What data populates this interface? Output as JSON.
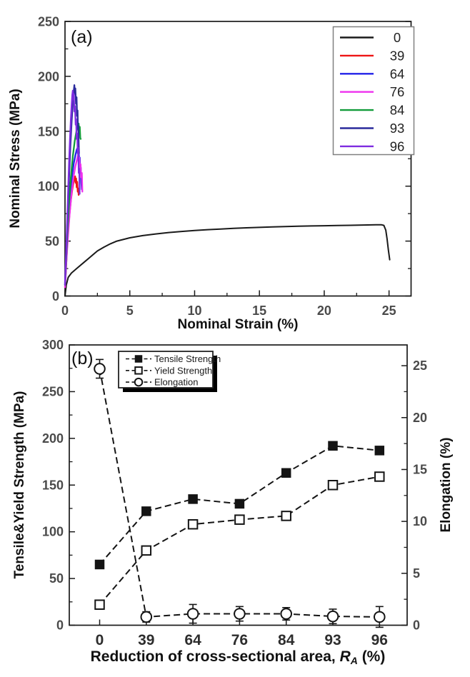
{
  "figure_title": "",
  "panel_a": {
    "label": "(a)",
    "xlabel": "Nominal Strain (%)",
    "ylabel": "Nominal Stress (MPa)"
  },
  "panel_b": {
    "label": "(b)",
    "ylabel_left": "Tensile&Yield Strength (MPa)",
    "ylabel_right": "Elongation (%)",
    "xlabel_prefix": "Reduction of cross-sectional area, ",
    "xlabel_symbol": "R",
    "xlabel_subscript": "A",
    "xlabel_suffix": " (%)"
  },
  "chart_data": [
    {
      "type": "line",
      "panel": "a",
      "title": "",
      "xlabel": "Nominal Strain (%)",
      "ylabel": "Nominal Stress (MPa)",
      "xlim": [
        0,
        26.7
      ],
      "ylim": [
        0,
        250
      ],
      "xticks": [
        0,
        5,
        10,
        15,
        20,
        25
      ],
      "yticks": [
        0,
        50,
        100,
        150,
        200,
        250
      ],
      "x_minor_step": 2.5,
      "y_minor_step": 25,
      "grid": false,
      "legend_position": "top-right",
      "legend_title": "",
      "series": [
        {
          "name": "0",
          "color": "#1a1a1a",
          "width": 2.0,
          "points": [
            [
              0,
              0
            ],
            [
              0.1,
              10
            ],
            [
              0.25,
              17
            ],
            [
              0.5,
              21
            ],
            [
              1,
              26
            ],
            [
              1.5,
              31
            ],
            [
              2,
              36
            ],
            [
              2.5,
              41
            ],
            [
              3,
              44.5
            ],
            [
              3.5,
              47.5
            ],
            [
              4,
              50
            ],
            [
              5,
              53
            ],
            [
              6,
              55
            ],
            [
              7,
              56.5
            ],
            [
              8,
              57.8
            ],
            [
              9,
              58.8
            ],
            [
              10,
              59.6
            ],
            [
              11,
              60.4
            ],
            [
              12,
              61
            ],
            [
              13,
              61.6
            ],
            [
              14,
              62.1
            ],
            [
              15,
              62.5
            ],
            [
              16,
              62.9
            ],
            [
              17,
              63.2
            ],
            [
              18,
              63.5
            ],
            [
              19,
              63.8
            ],
            [
              20,
              64
            ],
            [
              21,
              64.2
            ],
            [
              22,
              64.4
            ],
            [
              23,
              64.6
            ],
            [
              24,
              64.8
            ],
            [
              24.4,
              64.9
            ],
            [
              24.6,
              64.3
            ],
            [
              24.75,
              60
            ],
            [
              24.85,
              52
            ],
            [
              24.95,
              42
            ],
            [
              25.05,
              33
            ]
          ]
        },
        {
          "name": "39",
          "color": "#ee1414",
          "width": 2.3,
          "points": [
            [
              0,
              8
            ],
            [
              0.08,
              26
            ],
            [
              0.16,
              44
            ],
            [
              0.25,
              60
            ],
            [
              0.35,
              75
            ],
            [
              0.45,
              87
            ],
            [
              0.55,
              96
            ],
            [
              0.65,
              103
            ],
            [
              0.73,
              107
            ],
            [
              0.78,
              109
            ],
            [
              0.82,
              103
            ],
            [
              0.86,
              107
            ],
            [
              0.9,
              99
            ],
            [
              0.94,
              104
            ],
            [
              0.98,
              95
            ],
            [
              1.02,
              98
            ],
            [
              1.05,
              92
            ]
          ]
        },
        {
          "name": "64",
          "color": "#2121e8",
          "width": 2.3,
          "points": [
            [
              0,
              10
            ],
            [
              0.1,
              34
            ],
            [
              0.2,
              58
            ],
            [
              0.3,
              78
            ],
            [
              0.42,
              95
            ],
            [
              0.55,
              110
            ],
            [
              0.68,
              121
            ],
            [
              0.8,
              128
            ],
            [
              0.9,
              133
            ],
            [
              0.97,
              135
            ],
            [
              1.02,
              128
            ],
            [
              1.06,
              132
            ],
            [
              1.1,
              121
            ],
            [
              1.14,
              126
            ],
            [
              1.18,
              112
            ],
            [
              1.22,
              117
            ],
            [
              1.26,
              103
            ],
            [
              1.3,
              97
            ]
          ]
        },
        {
          "name": "76",
          "color": "#ee30ee",
          "width": 2.3,
          "points": [
            [
              0,
              8
            ],
            [
              0.1,
              30
            ],
            [
              0.22,
              52
            ],
            [
              0.35,
              74
            ],
            [
              0.5,
              93
            ],
            [
              0.65,
              108
            ],
            [
              0.8,
              118
            ],
            [
              0.92,
              124
            ],
            [
              1.0,
              128
            ],
            [
              1.06,
              122
            ],
            [
              1.1,
              126
            ],
            [
              1.15,
              115
            ],
            [
              1.2,
              120
            ],
            [
              1.25,
              108
            ],
            [
              1.3,
              112
            ],
            [
              1.34,
              95
            ]
          ]
        },
        {
          "name": "84",
          "color": "#129c3a",
          "width": 2.3,
          "points": [
            [
              0,
              10
            ],
            [
              0.1,
              36
            ],
            [
              0.2,
              62
            ],
            [
              0.32,
              86
            ],
            [
              0.45,
              108
            ],
            [
              0.6,
              127
            ],
            [
              0.75,
              141
            ],
            [
              0.88,
              150
            ],
            [
              0.98,
              155
            ],
            [
              1.05,
              157
            ],
            [
              1.1,
              149
            ],
            [
              1.14,
              154
            ],
            [
              1.18,
              144
            ],
            [
              1.21,
              143
            ]
          ]
        },
        {
          "name": "93",
          "color": "#2a2a9c",
          "width": 2.3,
          "points": [
            [
              0,
              12
            ],
            [
              0.08,
              36
            ],
            [
              0.16,
              62
            ],
            [
              0.25,
              90
            ],
            [
              0.34,
              116
            ],
            [
              0.43,
              140
            ],
            [
              0.52,
              160
            ],
            [
              0.6,
              175
            ],
            [
              0.67,
              186
            ],
            [
              0.72,
              192
            ],
            [
              0.76,
              184
            ],
            [
              0.8,
              189
            ],
            [
              0.85,
              175
            ],
            [
              0.89,
              181
            ],
            [
              0.93,
              164
            ],
            [
              0.97,
              169
            ],
            [
              1.0,
              152
            ],
            [
              1.03,
              155
            ],
            [
              1.06,
              138
            ],
            [
              1.08,
              130
            ]
          ]
        },
        {
          "name": "96",
          "color": "#7e2ce0",
          "width": 2.3,
          "points": [
            [
              0,
              10
            ],
            [
              0.07,
              34
            ],
            [
              0.15,
              62
            ],
            [
              0.23,
              92
            ],
            [
              0.31,
              120
            ],
            [
              0.38,
              142
            ],
            [
              0.45,
              161
            ],
            [
              0.51,
              174
            ],
            [
              0.56,
              183
            ],
            [
              0.6,
              187
            ],
            [
              0.64,
              179
            ],
            [
              0.68,
              184
            ],
            [
              0.73,
              168
            ],
            [
              0.77,
              173
            ],
            [
              0.82,
              156
            ],
            [
              0.86,
              161
            ],
            [
              0.9,
              143
            ],
            [
              0.94,
              148
            ],
            [
              0.98,
              130
            ],
            [
              1.02,
              135
            ],
            [
              1.06,
              112
            ],
            [
              1.1,
              116
            ],
            [
              1.13,
              93
            ]
          ]
        }
      ]
    },
    {
      "type": "line",
      "panel": "b",
      "title": "",
      "xlabel": "Reduction of cross-sectional area, R_A (%)",
      "ylabel_left": "Tensile&Yield Strength (MPa)",
      "ylabel_right": "Elongation (%)",
      "categories": [
        0,
        39,
        64,
        76,
        84,
        93,
        96
      ],
      "left_ylim": [
        0,
        300
      ],
      "right_ylim": [
        0,
        27
      ],
      "left_yticks": [
        0,
        50,
        100,
        150,
        200,
        250,
        300
      ],
      "right_yticks": [
        0,
        5,
        10,
        15,
        20,
        25
      ],
      "left_y_minor_step": 25,
      "right_y_minor_step": 2.5,
      "grid": false,
      "legend_position": "top-left",
      "series": [
        {
          "name": "Tensile Strength",
          "axis": "left",
          "marker": "filled-square",
          "color": "#141414",
          "values": [
            65,
            122,
            135,
            130,
            163,
            192,
            187
          ]
        },
        {
          "name": "Yield Strength",
          "axis": "left",
          "marker": "open-square",
          "color": "#141414",
          "values": [
            22,
            80,
            108,
            113,
            117,
            150,
            159
          ]
        },
        {
          "name": "Elongation",
          "axis": "right",
          "marker": "open-circle",
          "color": "#141414",
          "values": [
            24.7,
            0.8,
            1.1,
            1.1,
            1.1,
            0.85,
            0.8
          ],
          "errors": [
            0.9,
            0.5,
            0.9,
            0.7,
            0.6,
            0.7,
            1.0
          ]
        }
      ]
    }
  ]
}
